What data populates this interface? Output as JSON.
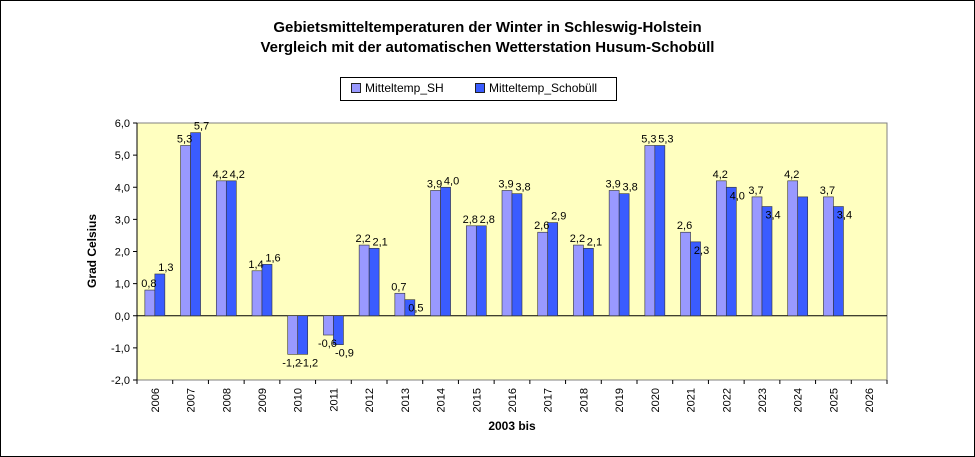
{
  "title_line1": "Gebietsmitteltemperaturen der Winter in Schleswig-Holstein",
  "title_line2": "Vergleich mit der automatischen Wetterstation Husum-Schobüll",
  "legend": {
    "sh_label": "Mitteltemp_SH",
    "schobuell_label": "Mitteltemp_Schobüll"
  },
  "colors": {
    "sh": "#9999ff",
    "schobuell": "#3a5cff",
    "plot_bg": "#ffffc0"
  },
  "chart_data": {
    "type": "bar",
    "title": "Gebietsmitteltemperaturen der Winter in Schleswig-Holstein / Vergleich mit der automatischen Wetterstation Husum-Schobüll",
    "xlabel": "2003  bis",
    "ylabel": "Grad Celsius",
    "ylim": [
      -2.0,
      6.0
    ],
    "yticks": [
      "-2,0",
      "-1,0",
      "0,0",
      "1,0",
      "2,0",
      "3,0",
      "4,0",
      "5,0",
      "6,0"
    ],
    "categories": [
      "2006",
      "2007",
      "2008",
      "2009",
      "2010",
      "2011",
      "2012",
      "2013",
      "2014",
      "2015",
      "2016",
      "2017",
      "2018",
      "2019",
      "2020",
      "2021",
      "2022",
      "2023",
      "2024",
      "2025",
      "2026"
    ],
    "series": [
      {
        "name": "Mitteltemp_SH",
        "values": [
          0.8,
          5.3,
          4.2,
          1.4,
          -1.2,
          -0.6,
          2.2,
          0.7,
          3.9,
          2.8,
          3.9,
          2.6,
          2.2,
          3.9,
          5.3,
          2.6,
          4.2,
          3.7,
          4.2,
          3.7,
          null
        ],
        "labels": [
          "0,8",
          "5,3",
          "4,2",
          "1,4",
          "-1,2",
          "-0,6",
          "2,2",
          "0,7",
          "3,9",
          "2,8",
          "3,9",
          "2,6",
          "2,2",
          "3,9",
          "5,3",
          "2,6",
          "4,2",
          "3,7",
          "4,2",
          "3,7",
          ""
        ]
      },
      {
        "name": "Mitteltemp_Schobüll",
        "values": [
          1.3,
          5.7,
          4.2,
          1.6,
          -1.2,
          -0.9,
          2.1,
          0.5,
          4.0,
          2.8,
          3.8,
          2.9,
          2.1,
          3.8,
          5.3,
          2.3,
          4.0,
          3.4,
          3.7,
          3.4,
          null
        ],
        "labels": [
          "1,3",
          "5,7",
          "4,2",
          "1,6",
          "-1,2",
          "-0,9",
          "2,1",
          "0,5",
          "4,0",
          "2,8",
          "3,8",
          "2,9",
          "2,1",
          "3,8",
          "5,3",
          "2,3",
          "4,0",
          "3,4",
          "",
          "3,4",
          ""
        ]
      }
    ],
    "grid": false,
    "legend_position": "top"
  }
}
